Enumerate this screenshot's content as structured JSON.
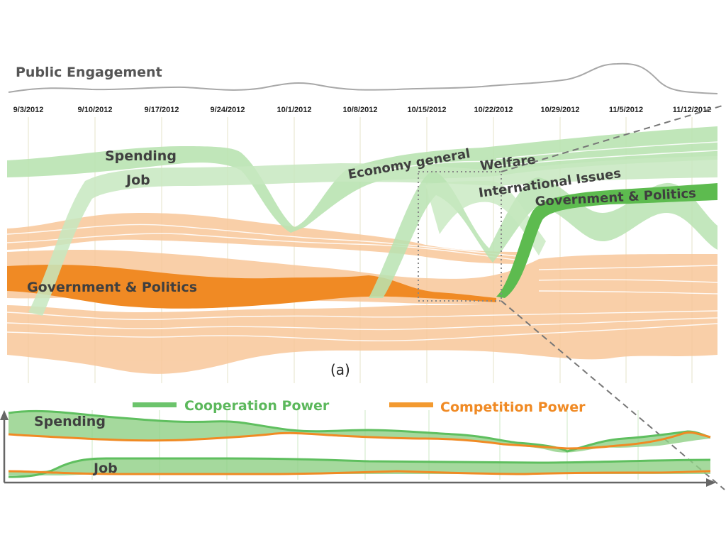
{
  "chart_data": [
    {
      "type": "area",
      "title": "Public Engagement",
      "caption": "(a)",
      "x": [
        "9/3/2012",
        "9/10/2012",
        "9/17/2012",
        "9/24/2012",
        "10/1/2012",
        "10/8/2012",
        "10/15/2012",
        "10/22/2012",
        "10/29/2012",
        "11/5/2012",
        "11/12/2012"
      ],
      "engagement": [
        0.1,
        0.15,
        0.15,
        0.12,
        0.35,
        0.2,
        0.2,
        0.28,
        0.45,
        0.9,
        0.15
      ],
      "topic_labels": [
        {
          "text": "Spending",
          "group": "cooperation"
        },
        {
          "text": "Job",
          "group": "cooperation"
        },
        {
          "text": "Economy general",
          "group": "cooperation"
        },
        {
          "text": "Welfare",
          "group": "cooperation"
        },
        {
          "text": "International Issues",
          "group": "cooperation"
        },
        {
          "text": "Government & Politics",
          "group": "cooperation"
        },
        {
          "text": "Government & Politics",
          "group": "competition"
        }
      ]
    },
    {
      "type": "area",
      "legend": [
        {
          "name": "Cooperation Power",
          "color": "#6cc46c"
        },
        {
          "name": "Competition Power",
          "color": "#f39a30"
        }
      ],
      "series": [
        {
          "name": "Spending"
        },
        {
          "name": "Job"
        }
      ]
    }
  ],
  "colors": {
    "cooperation_light": "#b9e3b1",
    "cooperation_dark": "#5dbb4f",
    "competition_light": "#f8c79a",
    "competition_dark": "#f08a24",
    "engagement_line": "#a8a8a8"
  }
}
